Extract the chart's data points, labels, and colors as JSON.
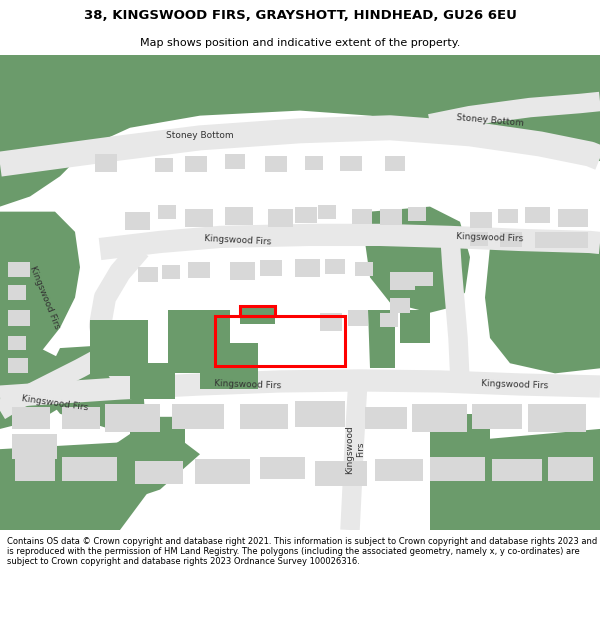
{
  "title": "38, KINGSWOOD FIRS, GRAYSHOTT, HINDHEAD, GU26 6EU",
  "subtitle": "Map shows position and indicative extent of the property.",
  "footer": "Contains OS data © Crown copyright and database right 2021. This information is subject to Crown copyright and database rights 2023 and is reproduced with the permission of HM Land Registry. The polygons (including the associated geometry, namely x, y co-ordinates) are subject to Crown copyright and database rights 2023 Ordnance Survey 100026316.",
  "bg_color": "#6b9b6b",
  "map_white": "#f0f0f0",
  "road_color": "#e8e8e8",
  "building_color": "#d8d8d8",
  "green_building_color": "#6b9b6b",
  "highlight_color": "#ff0000",
  "header_bg": "#ffffff",
  "footer_bg": "#ffffff",
  "label_color": "#333333"
}
